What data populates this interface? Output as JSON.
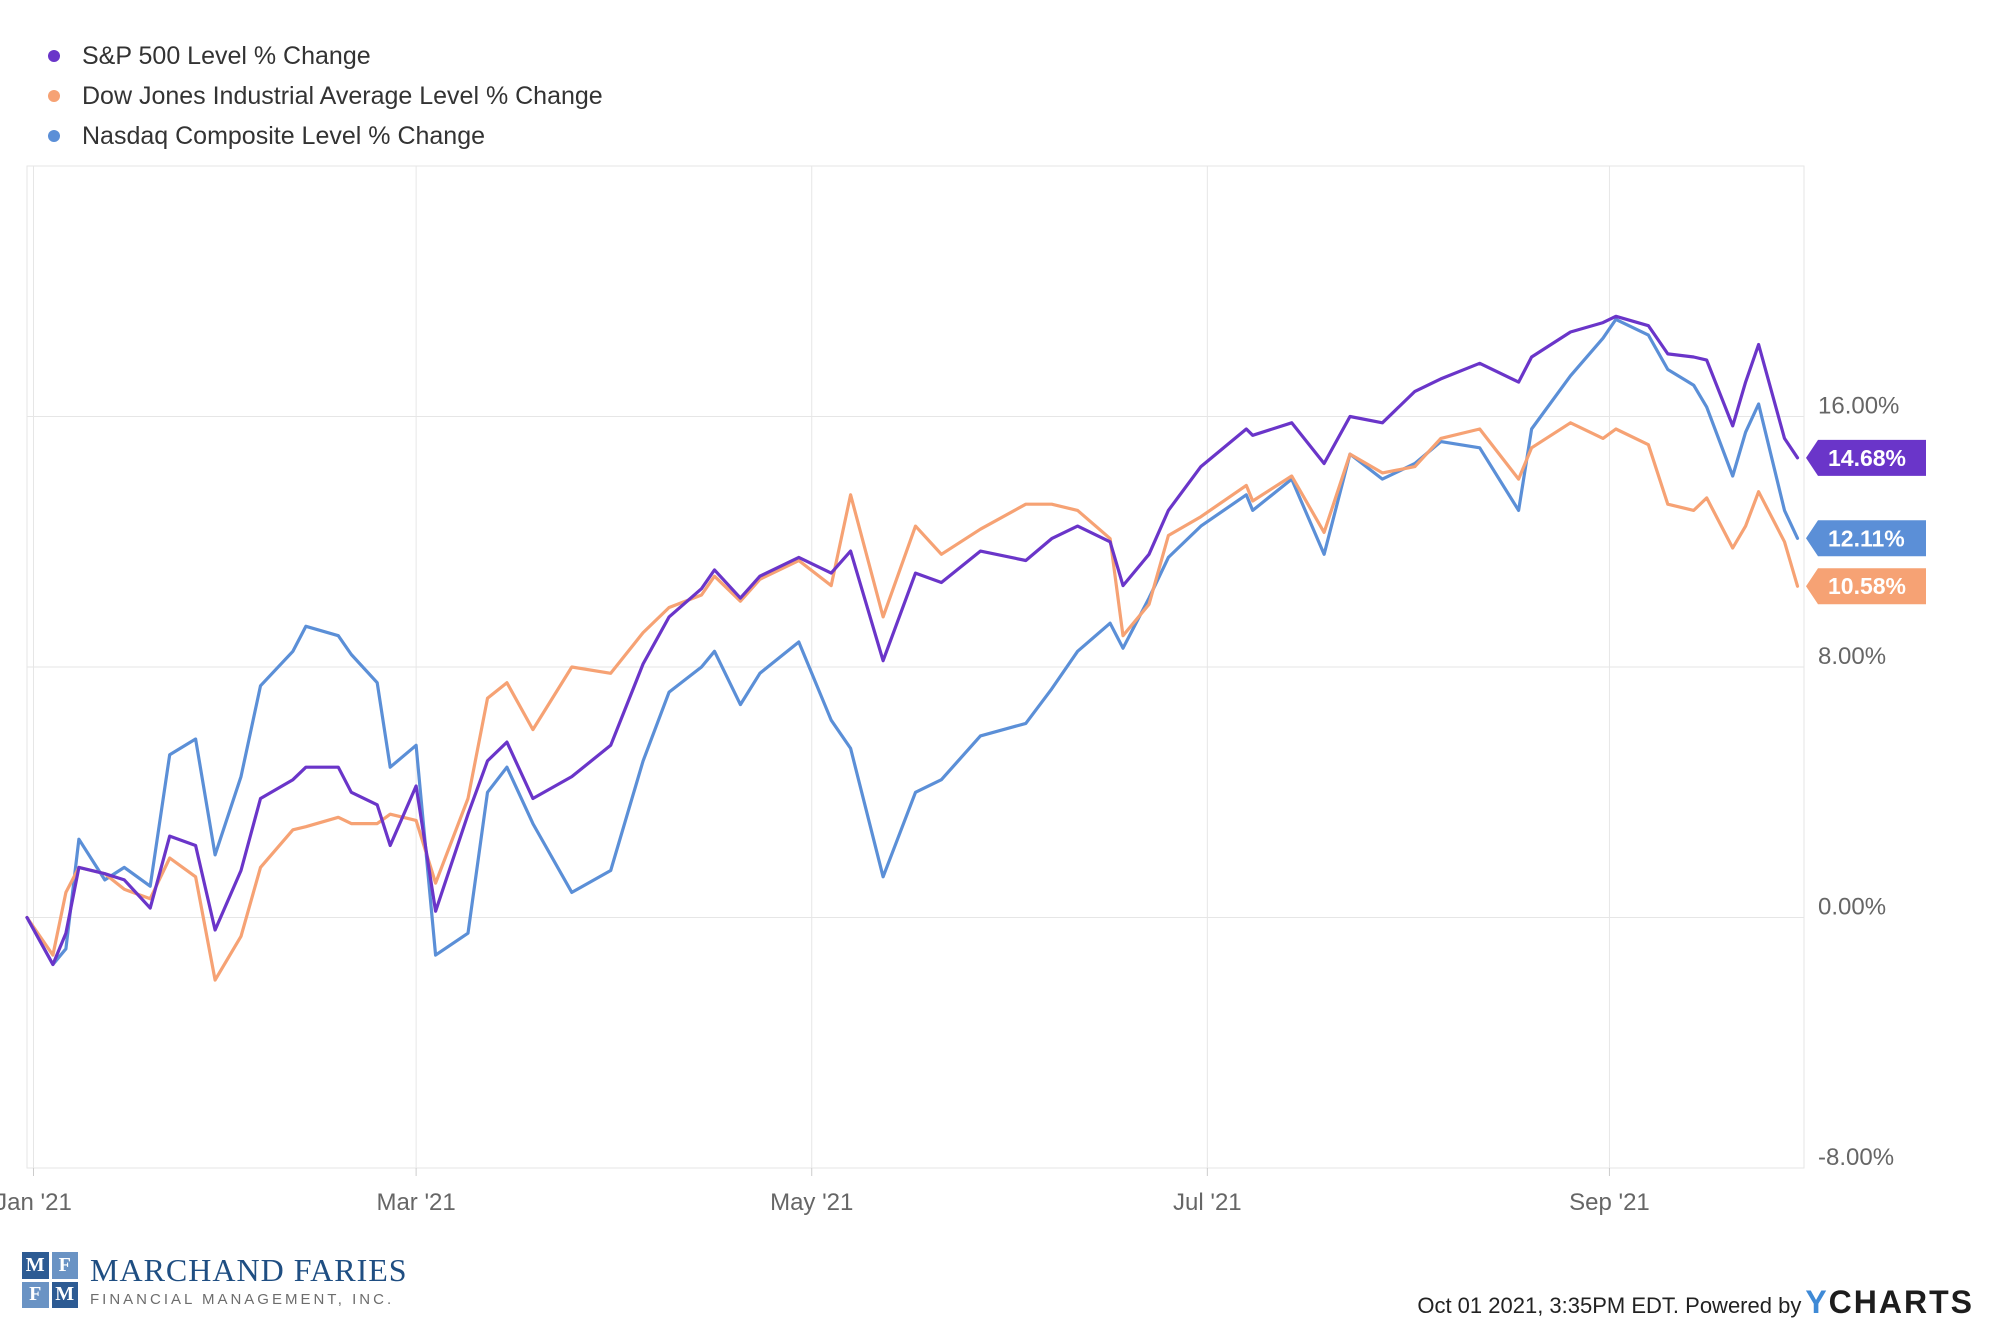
{
  "chart_data": {
    "type": "line",
    "x_range": [
      "2020-12-31",
      "2021-10-01"
    ],
    "x_ticks": [
      {
        "label": "Jan '21",
        "date": "2021-01-01"
      },
      {
        "label": "Mar '21",
        "date": "2021-03-01"
      },
      {
        "label": "May '21",
        "date": "2021-05-01"
      },
      {
        "label": "Jul '21",
        "date": "2021-07-01"
      },
      {
        "label": "Sep '21",
        "date": "2021-09-01"
      }
    ],
    "y_ticks": [
      {
        "label": "-8.00%",
        "value": -8
      },
      {
        "label": "0.00%",
        "value": 0
      },
      {
        "label": "8.00%",
        "value": 8
      },
      {
        "label": "16.00%",
        "value": 16
      }
    ],
    "ylim": [
      -8,
      24
    ],
    "grid": true,
    "legend_position": "top-left",
    "series": [
      {
        "name": "S&P 500 Level % Change",
        "color": "#6a35c9",
        "end_label": "14.68%",
        "points": [
          [
            "2020-12-31",
            0
          ],
          [
            "2021-01-04",
            -1.5
          ],
          [
            "2021-01-06",
            -0.5
          ],
          [
            "2021-01-08",
            1.6
          ],
          [
            "2021-01-12",
            1.4
          ],
          [
            "2021-01-15",
            1.2
          ],
          [
            "2021-01-19",
            0.3
          ],
          [
            "2021-01-22",
            2.6
          ],
          [
            "2021-01-26",
            2.3
          ],
          [
            "2021-01-29",
            -0.4
          ],
          [
            "2021-02-02",
            1.5
          ],
          [
            "2021-02-05",
            3.8
          ],
          [
            "2021-02-10",
            4.4
          ],
          [
            "2021-02-12",
            4.8
          ],
          [
            "2021-02-17",
            4.8
          ],
          [
            "2021-02-19",
            4.0
          ],
          [
            "2021-02-23",
            3.6
          ],
          [
            "2021-02-25",
            2.3
          ],
          [
            "2021-03-01",
            4.2
          ],
          [
            "2021-03-04",
            0.2
          ],
          [
            "2021-03-09",
            3.3
          ],
          [
            "2021-03-12",
            5.0
          ],
          [
            "2021-03-15",
            5.6
          ],
          [
            "2021-03-19",
            3.8
          ],
          [
            "2021-03-25",
            4.5
          ],
          [
            "2021-03-31",
            5.5
          ],
          [
            "2021-04-05",
            8.1
          ],
          [
            "2021-04-09",
            9.6
          ],
          [
            "2021-04-14",
            10.5
          ],
          [
            "2021-04-16",
            11.1
          ],
          [
            "2021-04-20",
            10.2
          ],
          [
            "2021-04-23",
            10.9
          ],
          [
            "2021-04-29",
            11.5
          ],
          [
            "2021-05-04",
            11.0
          ],
          [
            "2021-05-07",
            11.7
          ],
          [
            "2021-05-12",
            8.2
          ],
          [
            "2021-05-17",
            11.0
          ],
          [
            "2021-05-21",
            10.7
          ],
          [
            "2021-05-27",
            11.7
          ],
          [
            "2021-06-03",
            11.4
          ],
          [
            "2021-06-07",
            12.1
          ],
          [
            "2021-06-11",
            12.5
          ],
          [
            "2021-06-16",
            12.0
          ],
          [
            "2021-06-18",
            10.6
          ],
          [
            "2021-06-22",
            11.6
          ],
          [
            "2021-06-25",
            13.0
          ],
          [
            "2021-06-30",
            14.4
          ],
          [
            "2021-07-07",
            15.6
          ],
          [
            "2021-07-08",
            15.4
          ],
          [
            "2021-07-14",
            15.8
          ],
          [
            "2021-07-19",
            14.5
          ],
          [
            "2021-07-23",
            16.0
          ],
          [
            "2021-07-28",
            15.8
          ],
          [
            "2021-08-02",
            16.8
          ],
          [
            "2021-08-06",
            17.2
          ],
          [
            "2021-08-12",
            17.7
          ],
          [
            "2021-08-18",
            17.1
          ],
          [
            "2021-08-20",
            17.9
          ],
          [
            "2021-08-26",
            18.7
          ],
          [
            "2021-08-31",
            19.0
          ],
          [
            "2021-09-02",
            19.2
          ],
          [
            "2021-09-07",
            18.9
          ],
          [
            "2021-09-10",
            18.0
          ],
          [
            "2021-09-14",
            17.9
          ],
          [
            "2021-09-16",
            17.8
          ],
          [
            "2021-09-20",
            15.7
          ],
          [
            "2021-09-22",
            17.1
          ],
          [
            "2021-09-24",
            18.3
          ],
          [
            "2021-09-28",
            15.3
          ],
          [
            "2021-09-30",
            14.68
          ]
        ]
      },
      {
        "name": "Dow Jones Industrial Average Level % Change",
        "color": "#f6a274",
        "end_label": "10.58%",
        "points": [
          [
            "2020-12-31",
            0
          ],
          [
            "2021-01-04",
            -1.2
          ],
          [
            "2021-01-06",
            0.8
          ],
          [
            "2021-01-08",
            1.6
          ],
          [
            "2021-01-12",
            1.4
          ],
          [
            "2021-01-15",
            0.9
          ],
          [
            "2021-01-19",
            0.6
          ],
          [
            "2021-01-22",
            1.9
          ],
          [
            "2021-01-26",
            1.3
          ],
          [
            "2021-01-29",
            -2.0
          ],
          [
            "2021-02-02",
            -0.6
          ],
          [
            "2021-02-05",
            1.6
          ],
          [
            "2021-02-10",
            2.8
          ],
          [
            "2021-02-12",
            2.9
          ],
          [
            "2021-02-17",
            3.2
          ],
          [
            "2021-02-19",
            3.0
          ],
          [
            "2021-02-23",
            3.0
          ],
          [
            "2021-02-25",
            3.3
          ],
          [
            "2021-03-01",
            3.1
          ],
          [
            "2021-03-04",
            1.1
          ],
          [
            "2021-03-09",
            3.8
          ],
          [
            "2021-03-12",
            7.0
          ],
          [
            "2021-03-15",
            7.5
          ],
          [
            "2021-03-19",
            6.0
          ],
          [
            "2021-03-25",
            8.0
          ],
          [
            "2021-03-31",
            7.8
          ],
          [
            "2021-04-05",
            9.1
          ],
          [
            "2021-04-09",
            9.9
          ],
          [
            "2021-04-14",
            10.3
          ],
          [
            "2021-04-16",
            10.9
          ],
          [
            "2021-04-20",
            10.1
          ],
          [
            "2021-04-23",
            10.8
          ],
          [
            "2021-04-29",
            11.4
          ],
          [
            "2021-05-04",
            10.6
          ],
          [
            "2021-05-07",
            13.5
          ],
          [
            "2021-05-12",
            9.6
          ],
          [
            "2021-05-17",
            12.5
          ],
          [
            "2021-05-21",
            11.6
          ],
          [
            "2021-05-27",
            12.4
          ],
          [
            "2021-06-03",
            13.2
          ],
          [
            "2021-06-07",
            13.2
          ],
          [
            "2021-06-11",
            13.0
          ],
          [
            "2021-06-16",
            12.1
          ],
          [
            "2021-06-18",
            9.0
          ],
          [
            "2021-06-22",
            10.0
          ],
          [
            "2021-06-25",
            12.2
          ],
          [
            "2021-06-30",
            12.8
          ],
          [
            "2021-07-07",
            13.8
          ],
          [
            "2021-07-08",
            13.3
          ],
          [
            "2021-07-14",
            14.1
          ],
          [
            "2021-07-19",
            12.3
          ],
          [
            "2021-07-23",
            14.8
          ],
          [
            "2021-07-28",
            14.2
          ],
          [
            "2021-08-02",
            14.4
          ],
          [
            "2021-08-06",
            15.3
          ],
          [
            "2021-08-12",
            15.6
          ],
          [
            "2021-08-18",
            14.0
          ],
          [
            "2021-08-20",
            15.0
          ],
          [
            "2021-08-26",
            15.8
          ],
          [
            "2021-08-31",
            15.3
          ],
          [
            "2021-09-02",
            15.6
          ],
          [
            "2021-09-07",
            15.1
          ],
          [
            "2021-09-10",
            13.2
          ],
          [
            "2021-09-14",
            13.0
          ],
          [
            "2021-09-16",
            13.4
          ],
          [
            "2021-09-20",
            11.8
          ],
          [
            "2021-09-22",
            12.5
          ],
          [
            "2021-09-24",
            13.6
          ],
          [
            "2021-09-28",
            12.0
          ],
          [
            "2021-09-30",
            10.58
          ]
        ]
      },
      {
        "name": "Nasdaq Composite Level % Change",
        "color": "#5b8fd7",
        "end_label": "12.11%",
        "points": [
          [
            "2020-12-31",
            0
          ],
          [
            "2021-01-04",
            -1.5
          ],
          [
            "2021-01-06",
            -1.0
          ],
          [
            "2021-01-08",
            2.5
          ],
          [
            "2021-01-12",
            1.2
          ],
          [
            "2021-01-15",
            1.6
          ],
          [
            "2021-01-19",
            1.0
          ],
          [
            "2021-01-22",
            5.2
          ],
          [
            "2021-01-26",
            5.7
          ],
          [
            "2021-01-29",
            2.0
          ],
          [
            "2021-02-02",
            4.5
          ],
          [
            "2021-02-05",
            7.4
          ],
          [
            "2021-02-10",
            8.5
          ],
          [
            "2021-02-12",
            9.3
          ],
          [
            "2021-02-17",
            9.0
          ],
          [
            "2021-02-19",
            8.4
          ],
          [
            "2021-02-23",
            7.5
          ],
          [
            "2021-02-25",
            4.8
          ],
          [
            "2021-03-01",
            5.5
          ],
          [
            "2021-03-04",
            -1.2
          ],
          [
            "2021-03-09",
            -0.5
          ],
          [
            "2021-03-12",
            4.0
          ],
          [
            "2021-03-15",
            4.8
          ],
          [
            "2021-03-19",
            3.0
          ],
          [
            "2021-03-25",
            0.8
          ],
          [
            "2021-03-31",
            1.5
          ],
          [
            "2021-04-05",
            5.0
          ],
          [
            "2021-04-09",
            7.2
          ],
          [
            "2021-04-14",
            8.0
          ],
          [
            "2021-04-16",
            8.5
          ],
          [
            "2021-04-20",
            6.8
          ],
          [
            "2021-04-23",
            7.8
          ],
          [
            "2021-04-29",
            8.8
          ],
          [
            "2021-05-04",
            6.3
          ],
          [
            "2021-05-07",
            5.4
          ],
          [
            "2021-05-12",
            1.3
          ],
          [
            "2021-05-17",
            4.0
          ],
          [
            "2021-05-21",
            4.4
          ],
          [
            "2021-05-27",
            5.8
          ],
          [
            "2021-06-03",
            6.2
          ],
          [
            "2021-06-07",
            7.3
          ],
          [
            "2021-06-11",
            8.5
          ],
          [
            "2021-06-16",
            9.4
          ],
          [
            "2021-06-18",
            8.6
          ],
          [
            "2021-06-22",
            10.2
          ],
          [
            "2021-06-25",
            11.5
          ],
          [
            "2021-06-30",
            12.5
          ],
          [
            "2021-07-07",
            13.5
          ],
          [
            "2021-07-08",
            13.0
          ],
          [
            "2021-07-14",
            14.0
          ],
          [
            "2021-07-19",
            11.6
          ],
          [
            "2021-07-23",
            14.8
          ],
          [
            "2021-07-28",
            14.0
          ],
          [
            "2021-08-02",
            14.5
          ],
          [
            "2021-08-06",
            15.2
          ],
          [
            "2021-08-12",
            15.0
          ],
          [
            "2021-08-18",
            13.0
          ],
          [
            "2021-08-20",
            15.6
          ],
          [
            "2021-08-26",
            17.3
          ],
          [
            "2021-08-31",
            18.5
          ],
          [
            "2021-09-02",
            19.1
          ],
          [
            "2021-09-07",
            18.6
          ],
          [
            "2021-09-10",
            17.5
          ],
          [
            "2021-09-14",
            17.0
          ],
          [
            "2021-09-16",
            16.3
          ],
          [
            "2021-09-20",
            14.1
          ],
          [
            "2021-09-22",
            15.5
          ],
          [
            "2021-09-24",
            16.4
          ],
          [
            "2021-09-28",
            13.0
          ],
          [
            "2021-09-30",
            12.11
          ]
        ]
      }
    ]
  },
  "branding": {
    "logo_monogram": [
      "M",
      "F",
      "F",
      "M"
    ],
    "logo_name": "MARCHAND FARIES",
    "logo_subtitle": "FINANCIAL MANAGEMENT, INC.",
    "footer_note": "Oct 01 2021, 3:35PM EDT. Powered by",
    "footer_brand_y": "Y",
    "footer_brand_rest": "CHARTS"
  },
  "colors": {
    "accent_sp500": "#6a35c9",
    "accent_dow": "#f6a274",
    "accent_nasdaq": "#5b8fd7",
    "grid": "#e6e6e6",
    "axis_text": "#666666"
  }
}
